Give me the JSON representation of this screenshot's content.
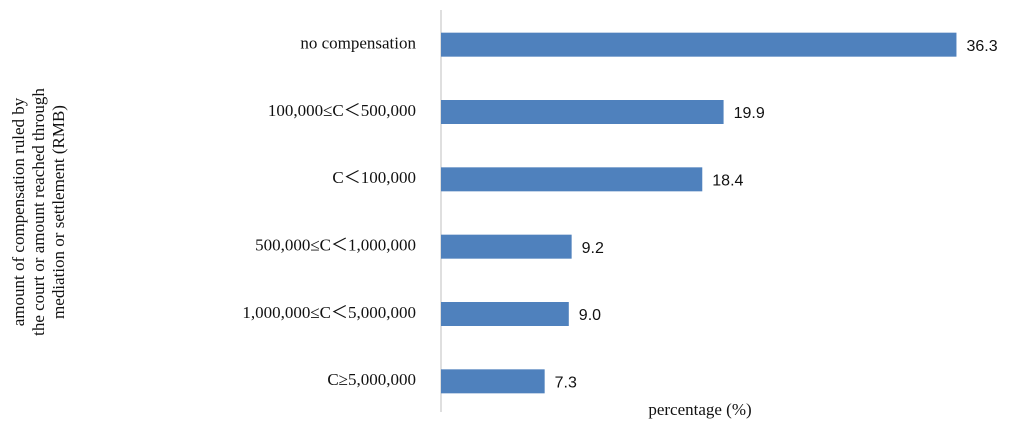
{
  "chart_data": {
    "type": "bar",
    "orientation": "horizontal",
    "y_label": [
      "amount of compensation ruled by",
      "the court or amount reached through",
      "mediation or settlement (RMB)"
    ],
    "x_label": "percentage (%)",
    "categories": [
      "no compensation",
      "100,000≤C＜500,000",
      "C＜100,000",
      "500,000≤C＜1,000,000",
      "1,000,000≤C＜5,000,000",
      "C≥5,000,000"
    ],
    "values": [
      36.3,
      19.9,
      18.4,
      9.2,
      9,
      7.3
    ],
    "value_labels": [
      "36.3",
      "19.9",
      "18.4",
      "9.2",
      "9.0",
      "7.3"
    ],
    "color": "#4f81bd",
    "xlim": [
      0,
      40
    ]
  }
}
